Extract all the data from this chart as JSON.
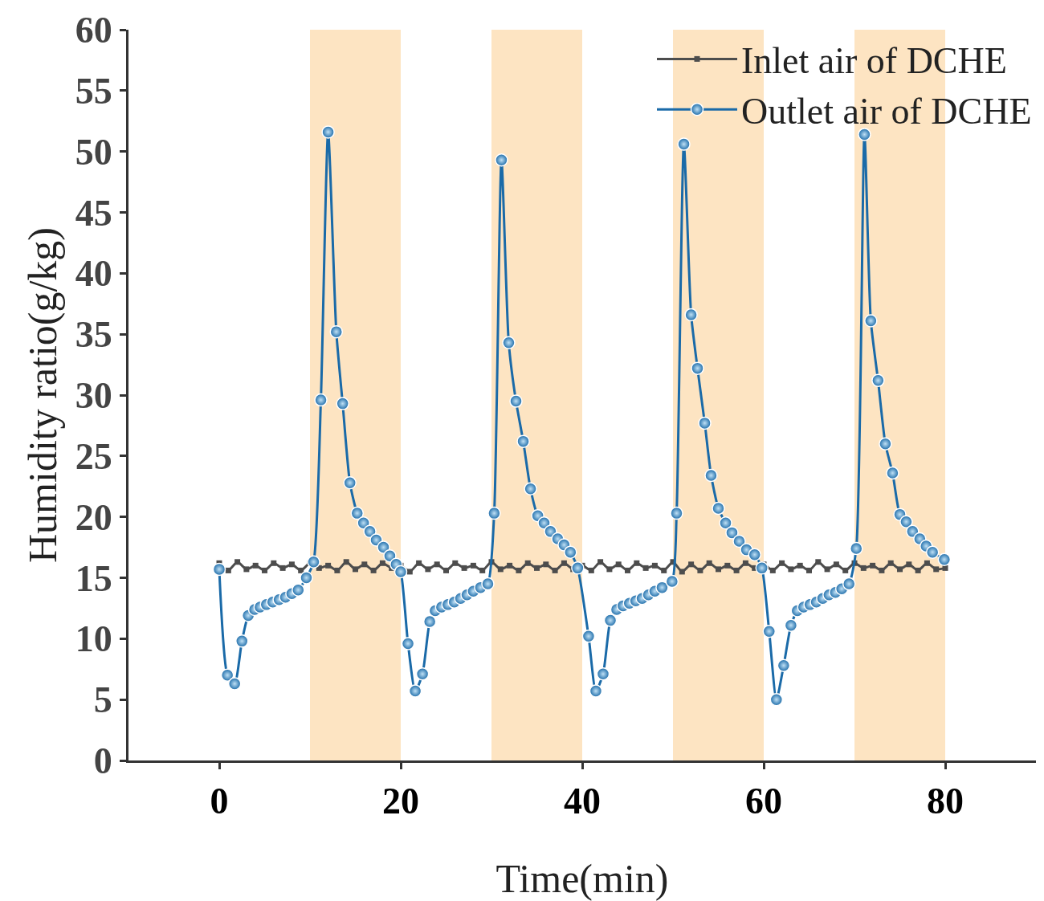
{
  "chart_data": {
    "type": "line",
    "xlabel": "Time(min)",
    "ylabel": "Humidity ratio(g/kg)",
    "xlim": [
      -10,
      90
    ],
    "xticks": [
      0,
      20,
      40,
      60,
      80
    ],
    "ylim": [
      0,
      60
    ],
    "yticks": [
      0,
      5,
      10,
      15,
      20,
      25,
      30,
      35,
      40,
      45,
      50,
      55,
      60
    ],
    "grid": false,
    "legend": "top right",
    "bands": [
      {
        "axis": "x",
        "from": 10,
        "to": 20,
        "color": "#fde4c2"
      },
      {
        "axis": "x",
        "from": 30,
        "to": 40,
        "color": "#fde4c2"
      },
      {
        "axis": "x",
        "from": 50,
        "to": 60,
        "color": "#fde4c2"
      },
      {
        "axis": "x",
        "from": 70,
        "to": 80,
        "color": "#fde4c2"
      }
    ],
    "series": [
      {
        "name": "Inlet air of DCHE",
        "color": "#4d4d4d",
        "marker": "square",
        "x": [
          0,
          1,
          2,
          3,
          4,
          5,
          6,
          7,
          8,
          9,
          10,
          11,
          12,
          13,
          14,
          15,
          16,
          17,
          18,
          19,
          20,
          21,
          22,
          23,
          24,
          25,
          26,
          27,
          28,
          29,
          30,
          31,
          32,
          33,
          34,
          35,
          36,
          37,
          38,
          39,
          40,
          41,
          42,
          43,
          44,
          45,
          46,
          47,
          48,
          49,
          50,
          51,
          52,
          53,
          54,
          55,
          56,
          57,
          58,
          59,
          60,
          61,
          62,
          63,
          64,
          65,
          66,
          67,
          68,
          69,
          70,
          71,
          72,
          73,
          74,
          75,
          76,
          77,
          78,
          79,
          80
        ],
        "values": [
          16.2,
          15.6,
          16.3,
          15.7,
          16.0,
          15.6,
          16.2,
          15.8,
          16.1,
          15.6,
          16.2,
          15.8,
          16.0,
          15.6,
          16.3,
          15.7,
          16.1,
          15.6,
          16.2,
          15.8,
          16.0,
          15.5,
          16.2,
          15.7,
          16.1,
          15.6,
          16.2,
          15.8,
          16.0,
          15.6,
          16.3,
          15.7,
          16.0,
          15.6,
          16.2,
          15.8,
          16.1,
          15.6,
          16.2,
          15.7,
          16.0,
          15.6,
          16.3,
          15.7,
          16.1,
          15.6,
          16.2,
          15.8,
          16.0,
          15.6,
          16.3,
          15.5,
          16.1,
          15.6,
          16.2,
          15.7,
          16.0,
          15.6,
          16.2,
          15.8,
          16.1,
          15.6,
          16.2,
          15.7,
          16.0,
          15.6,
          16.3,
          15.7,
          16.1,
          15.6,
          16.2,
          15.8,
          16.0,
          15.6,
          16.2,
          15.7,
          16.1,
          15.6,
          16.2,
          15.7,
          15.8
        ]
      },
      {
        "name": "Outlet air of DCHE",
        "color": "#1a6aa8",
        "marker": "circle",
        "x": [
          0,
          0.9,
          1.7,
          2.5,
          3.2,
          3.9,
          4.5,
          5.2,
          5.9,
          6.6,
          7.3,
          8.0,
          8.7,
          9.6,
          10.4,
          11.2,
          12.0,
          12.9,
          13.6,
          14.4,
          15.2,
          15.9,
          16.6,
          17.3,
          18.1,
          18.8,
          19.5,
          20.0,
          20.8,
          21.6,
          22.4,
          23.2,
          23.8,
          24.5,
          25.2,
          25.9,
          26.6,
          27.3,
          28.0,
          28.8,
          29.6,
          30.3,
          31.1,
          31.9,
          32.7,
          33.5,
          34.3,
          35.1,
          35.8,
          36.5,
          37.3,
          38.0,
          38.7,
          39.5,
          40.7,
          41.5,
          42.3,
          43.1,
          43.8,
          44.5,
          45.2,
          45.9,
          46.6,
          47.3,
          48.0,
          48.8,
          49.9,
          50.4,
          51.2,
          52.0,
          52.7,
          53.5,
          54.2,
          55.0,
          55.8,
          56.5,
          57.3,
          58.1,
          59.0,
          59.8,
          60.6,
          61.4,
          62.2,
          63.0,
          63.7,
          64.4,
          65.1,
          65.8,
          66.5,
          67.2,
          67.9,
          68.6,
          69.4,
          70.2,
          71.1,
          71.8,
          72.6,
          73.4,
          74.2,
          75.0,
          75.7,
          76.4,
          77.2,
          77.9,
          78.6,
          79.9
        ],
        "values": [
          15.7,
          7.0,
          6.3,
          9.8,
          11.9,
          12.4,
          12.6,
          12.8,
          13.0,
          13.2,
          13.4,
          13.7,
          14.0,
          15.0,
          16.3,
          29.6,
          51.6,
          35.2,
          29.3,
          22.8,
          20.3,
          19.5,
          18.8,
          18.1,
          17.5,
          16.8,
          16.1,
          15.5,
          9.6,
          5.7,
          7.1,
          11.4,
          12.3,
          12.6,
          12.8,
          13.0,
          13.3,
          13.6,
          13.9,
          14.2,
          14.5,
          20.3,
          49.3,
          34.3,
          29.5,
          26.2,
          22.3,
          20.1,
          19.5,
          18.8,
          18.2,
          17.7,
          17.1,
          15.8,
          10.2,
          5.7,
          7.1,
          11.5,
          12.4,
          12.7,
          12.9,
          13.1,
          13.3,
          13.6,
          13.9,
          14.2,
          14.7,
          20.3,
          50.6,
          36.6,
          32.2,
          27.7,
          23.4,
          20.7,
          19.5,
          18.7,
          18.0,
          17.3,
          16.9,
          15.8,
          10.6,
          5.0,
          7.8,
          11.1,
          12.3,
          12.6,
          12.8,
          13.0,
          13.3,
          13.6,
          13.8,
          14.1,
          14.5,
          17.4,
          51.4,
          36.1,
          31.2,
          26.0,
          23.6,
          20.2,
          19.6,
          18.8,
          18.2,
          17.6,
          17.1,
          16.5
        ]
      }
    ]
  }
}
